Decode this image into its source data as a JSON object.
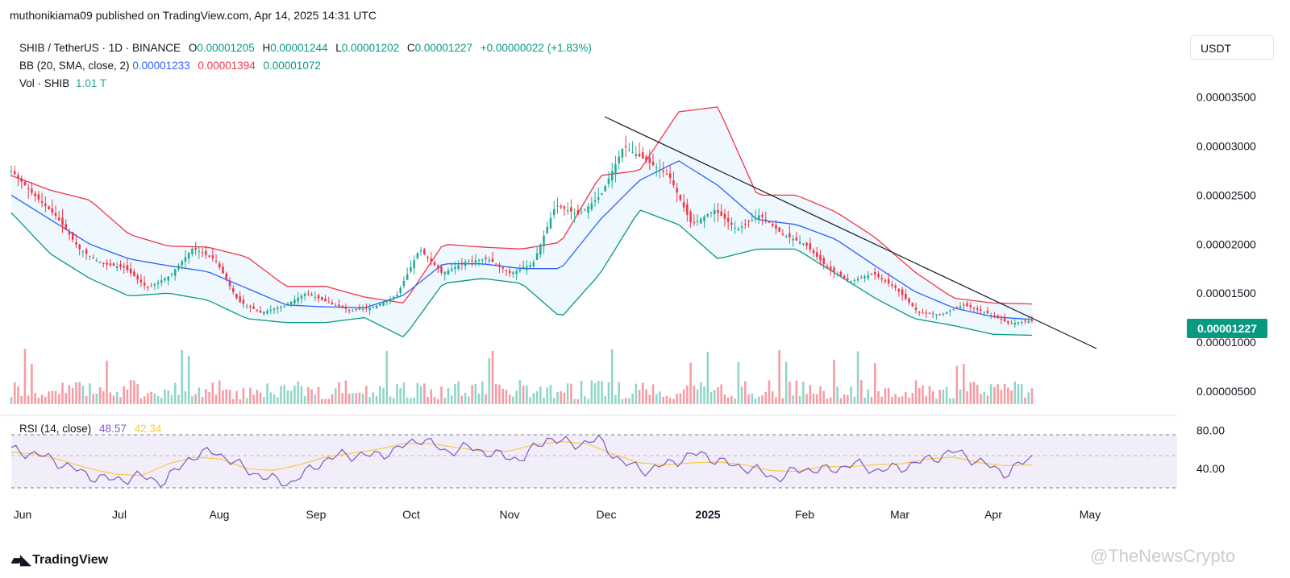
{
  "header": {
    "publisher": "muthonikiama09 published on TradingView.com, Apr 14, 2025 14:31 UTC"
  },
  "legend": {
    "symbol": "SHIB / TetherUS · 1D · BINANCE",
    "open_label": "O",
    "open": "0.00001205",
    "high_label": "H",
    "high": "0.00001244",
    "low_label": "L",
    "low": "0.00001202",
    "close_label": "C",
    "close": "0.00001227",
    "change": "+0.00000022 (+1.83%)",
    "bb_label": "BB (20, SMA, close, 2)",
    "bb_basis": "0.00001233",
    "bb_upper": "0.00001394",
    "bb_lower": "0.00001072",
    "vol_label": "Vol · SHIB",
    "vol_value": "1.01 T"
  },
  "currency": "USDT",
  "rsi_legend": {
    "label": "RSI (14, close)",
    "value": "48.57",
    "ma": "42.34"
  },
  "footer": {
    "logo_text": "TradingView",
    "watermark": "@TheNewsCrypto"
  },
  "colors": {
    "up": "#22ab94",
    "down": "#f23645",
    "bb_upper": "#f23645",
    "bb_basis": "#2962ff",
    "bb_lower": "#089981",
    "rsi": "#7e57c2",
    "rsi_ma": "#f7c948",
    "price_label_bg": "#089981"
  },
  "chart_data": [
    {
      "type": "candlestick",
      "title": "",
      "y_ticks": [
        "0.00003500",
        "0.00003000",
        "0.00002500",
        "0.00002000",
        "0.00001500",
        "0.00001000",
        "0.00000500"
      ],
      "ylim": [
        4.5e-06,
        3.67e-05
      ],
      "x_ticks": [
        "Jun",
        "Jul",
        "Aug",
        "Sep",
        "Oct",
        "Nov",
        "Dec",
        "2025",
        "Feb",
        "Mar",
        "Apr",
        "May"
      ],
      "last_price": "0.00001227",
      "series": [
        {
          "name": "Close",
          "values": [
            2.75e-05,
            2.5e-05,
            2.28e-05,
            1.95e-05,
            1.8e-05,
            1.76e-05,
            1.55e-05,
            1.68e-05,
            1.96e-05,
            1.84e-05,
            1.42e-05,
            1.3e-05,
            1.37e-05,
            1.5e-05,
            1.4e-05,
            1.32e-05,
            1.36e-05,
            1.48e-05,
            1.95e-05,
            1.7e-05,
            1.82e-05,
            1.85e-05,
            1.7e-05,
            1.8e-05,
            2.4e-05,
            2.3e-05,
            2.5e-05,
            3e-05,
            2.85e-05,
            2.7e-05,
            2.2e-05,
            2.35e-05,
            2.15e-05,
            2.3e-05,
            2.1e-05,
            2e-05,
            1.75e-05,
            1.62e-05,
            1.7e-05,
            1.55e-05,
            1.3e-05,
            1.28e-05,
            1.38e-05,
            1.3e-05,
            1.19e-05,
            1.22e-05
          ]
        },
        {
          "name": "BB Upper",
          "values": [
            2.7e-05,
            2.55e-05,
            2.45e-05,
            2.1e-05,
            1.98e-05,
            1.97e-05,
            1.87e-05,
            1.57e-05,
            1.57e-05,
            1.46e-05,
            1.4e-05,
            2e-05,
            1.97e-05,
            1.95e-05,
            2.02e-05,
            2.7e-05,
            2.75e-05,
            3.35e-05,
            3.4e-05,
            2.5e-05,
            2.5e-05,
            2.33e-05,
            2.07e-05,
            1.72e-05,
            1.45e-05,
            1.4e-05,
            1.39e-05
          ]
        },
        {
          "name": "BB Basis",
          "values": [
            2.5e-05,
            2.25e-05,
            2e-05,
            1.85e-05,
            1.78e-05,
            1.72e-05,
            1.55e-05,
            1.38e-05,
            1.36e-05,
            1.35e-05,
            1.48e-05,
            1.8e-05,
            1.8e-05,
            1.75e-05,
            1.75e-05,
            2.25e-05,
            2.65e-05,
            2.85e-05,
            2.6e-05,
            2.25e-05,
            2.2e-05,
            2.05e-05,
            1.78e-05,
            1.52e-05,
            1.35e-05,
            1.26e-05,
            1.23e-05
          ]
        },
        {
          "name": "BB Lower",
          "values": [
            2.32e-05,
            1.9e-05,
            1.65e-05,
            1.47e-05,
            1.5e-05,
            1.43e-05,
            1.24e-05,
            1.2e-05,
            1.2e-05,
            1.25e-05,
            1.05e-05,
            1.6e-05,
            1.65e-05,
            1.6e-05,
            1.25e-05,
            1.7e-05,
            2.35e-05,
            2.2e-05,
            1.85e-05,
            1.95e-05,
            1.95e-05,
            1.7e-05,
            1.45e-05,
            1.24e-05,
            1.17e-05,
            1.08e-05,
            1.07e-05
          ]
        }
      ]
    },
    {
      "type": "line",
      "title": "RSI (14, close)",
      "y_ticks": [
        "80.00",
        "40.00"
      ],
      "ylim": [
        15,
        92
      ],
      "series": [
        {
          "name": "RSI",
          "values": [
            59,
            55,
            45,
            33,
            28,
            32,
            26,
            52,
            58,
            42,
            30,
            25,
            45,
            55,
            53,
            58,
            72,
            58,
            62,
            54,
            50,
            72,
            65,
            70,
            45,
            38,
            48,
            56,
            45,
            40,
            30,
            40,
            38,
            45,
            38,
            42,
            50,
            58,
            46,
            35,
            52
          ]
        },
        {
          "name": "RSI MA",
          "values": [
            57,
            55,
            48,
            40,
            34,
            33,
            45,
            52,
            50,
            40,
            38,
            44,
            52,
            56,
            60,
            66,
            66,
            62,
            58,
            58,
            65,
            68,
            66,
            55,
            46,
            44,
            46,
            47,
            44,
            38,
            37,
            42,
            42,
            44,
            45,
            50,
            52,
            46,
            43,
            44
          ]
        }
      ]
    }
  ]
}
